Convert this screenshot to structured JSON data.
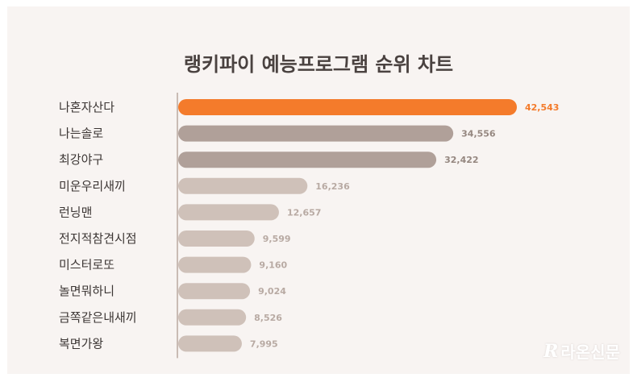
{
  "chart_data": {
    "type": "bar",
    "orientation": "horizontal",
    "title": "랭키파이 예능프로그램 순위 차트",
    "categories": [
      "나혼자산다",
      "나는솔로",
      "최강야구",
      "미운우리새끼",
      "런닝맨",
      "전지적참견시점",
      "미스터로또",
      "놀면뭐하니",
      "금쪽같은내새끼",
      "복면가왕"
    ],
    "values": [
      42543,
      34556,
      32422,
      16236,
      12657,
      9599,
      9160,
      9024,
      8526,
      7995
    ],
    "value_labels": [
      "42,543",
      "34,556",
      "32,422",
      "16,236",
      "12,657",
      "9,599",
      "9,160",
      "9,024",
      "8,526",
      "7,995"
    ],
    "bar_colors": [
      "#f47b2b",
      "#b0a099",
      "#b0a099",
      "#cfc1b9",
      "#cfc1b9",
      "#cfc1b9",
      "#cfc1b9",
      "#cfc1b9",
      "#cfc1b9",
      "#cfc1b9"
    ],
    "value_label_colors": [
      "#f47b2b",
      "#958780",
      "#958780",
      "#b8aaa3",
      "#b8aaa3",
      "#b8aaa3",
      "#b8aaa3",
      "#b8aaa3",
      "#b8aaa3",
      "#b8aaa3"
    ],
    "xlim": [
      0,
      42543
    ],
    "grid": false,
    "legend": "none"
  },
  "branding": {
    "logo_text": "라온신문",
    "logo_mark": "R"
  },
  "colors": {
    "background": "#f8f4f2",
    "axis": "#c9bbb4",
    "accent": "#f47b2b"
  }
}
